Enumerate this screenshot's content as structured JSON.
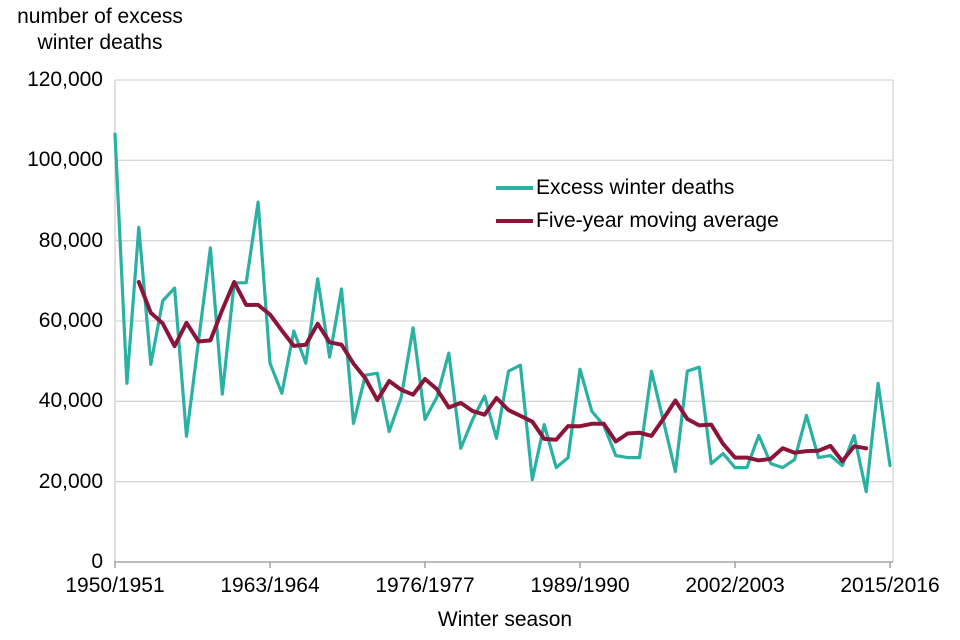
{
  "page": {
    "background": "#ffffff"
  },
  "chart_data": {
    "type": "line",
    "y_axis_title_lines": [
      "number of excess",
      "winter deaths"
    ],
    "x_axis_title": "Winter season",
    "ylim": [
      0,
      120000
    ],
    "y_tick_step": 20000,
    "y_ticks": [
      {
        "value": 0,
        "label": "0"
      },
      {
        "value": 20000,
        "label": "20,000"
      },
      {
        "value": 40000,
        "label": "40,000"
      },
      {
        "value": 60000,
        "label": "60,000"
      },
      {
        "value": 80000,
        "label": "80,000"
      },
      {
        "value": 100000,
        "label": "100,000"
      },
      {
        "value": 120000,
        "label": "120,000"
      }
    ],
    "x_ticks": [
      {
        "season_index": 0,
        "label": "1950/1951"
      },
      {
        "season_index": 13,
        "label": "1963/1964"
      },
      {
        "season_index": 26,
        "label": "1976/1977"
      },
      {
        "season_index": 39,
        "label": "1989/1990"
      },
      {
        "season_index": 52,
        "label": "2002/2003"
      },
      {
        "season_index": 65,
        "label": "2015/2016"
      }
    ],
    "x_first_season": "1950/1951",
    "x_last_season": "2015/2016",
    "grid": "horizontal-only",
    "legend_position": "inside-upper-middle",
    "colors": {
      "grid": "#d6d6d6",
      "axis": "#a6a6a6",
      "text": "#000000"
    },
    "series": [
      {
        "name": "Excess winter deaths",
        "color": "#2bb1a3",
        "stroke_width": 3.2,
        "values": [
          106500,
          44500,
          83300,
          49200,
          65000,
          68200,
          31300,
          55000,
          78200,
          41800,
          69500,
          69500,
          89600,
          49500,
          42000,
          57500,
          49500,
          70500,
          51000,
          68000,
          34500,
          46500,
          47000,
          32500,
          41000,
          58300,
          35500,
          41000,
          52000,
          28300,
          35500,
          41300,
          30800,
          47500,
          49000,
          20500,
          34200,
          23500,
          26000,
          48000,
          37500,
          34000,
          26500,
          26000,
          26000,
          47500,
          35000,
          22500,
          47500,
          48500,
          24500,
          27000,
          23500,
          23500,
          31500,
          24500,
          23500,
          25500,
          36500,
          26000,
          26500,
          24000,
          31500,
          17500,
          44500,
          24000
        ]
      },
      {
        "name": "Five-year moving average",
        "color": "#8a1538",
        "stroke_width": 4,
        "derived": "centered 5-year moving average of 'Excess winter deaths' (plotted 1952/1953 to 2013/2014)"
      }
    ]
  }
}
